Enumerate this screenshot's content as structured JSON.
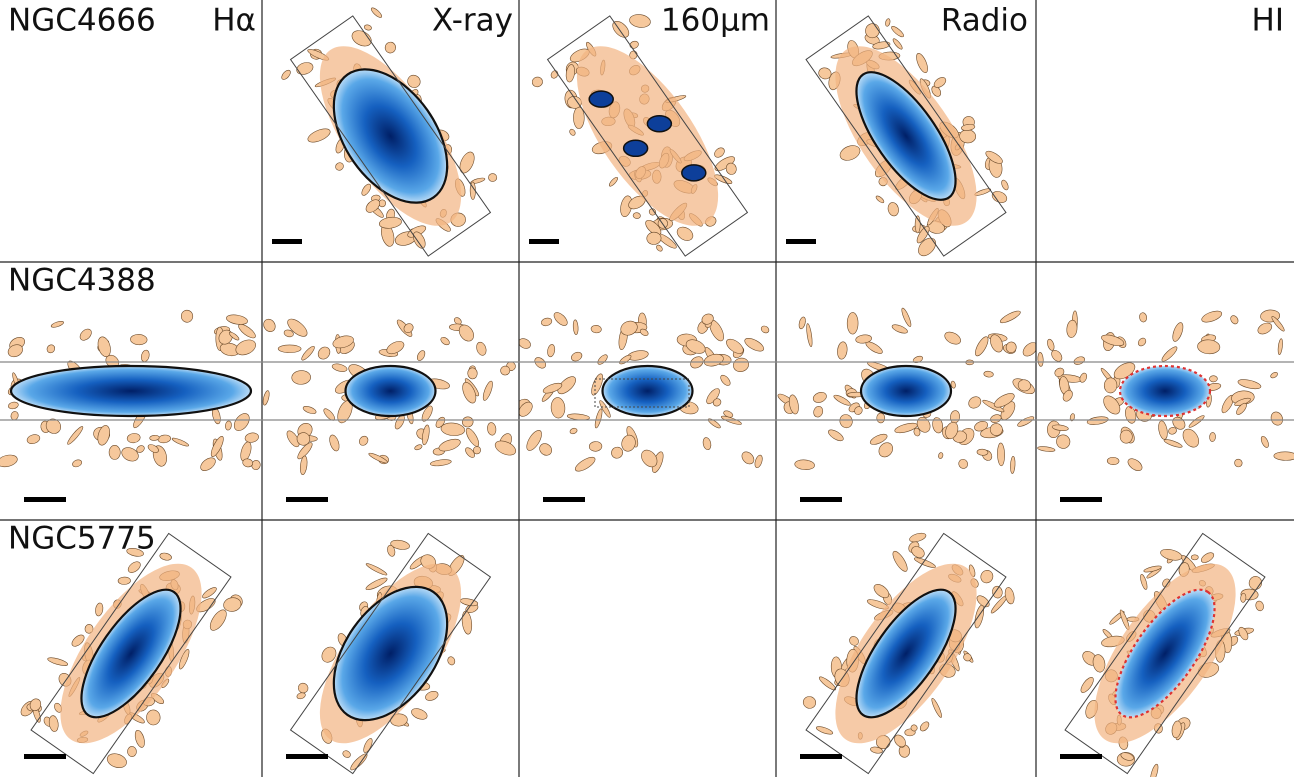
{
  "row_labels": [
    "NGC4666",
    "NGC4388",
    "NGC5775"
  ],
  "column_labels": [
    "Hα",
    "X-ray",
    "160μm",
    "Radio",
    "HI"
  ]
}
